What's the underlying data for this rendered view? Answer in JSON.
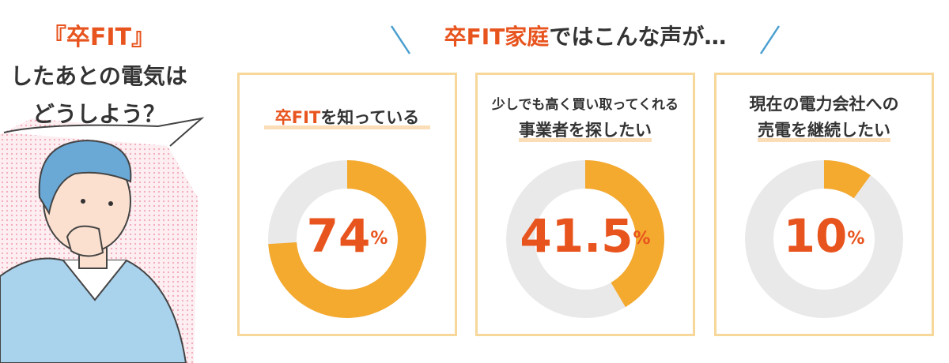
{
  "intro": {
    "lines": [
      [
        {
          "text": "『卒FIT』",
          "color": "#e8541e"
        }
      ],
      [
        {
          "text": "したあとの電気は",
          "color": "#333333"
        }
      ],
      [
        {
          "text": "どうしよう？",
          "color": "#333333"
        }
      ]
    ]
  },
  "header": [
    {
      "text": "卒FIT家庭",
      "color": "#e8541e"
    },
    {
      "text": "ではこんな声が…",
      "color": "#333333"
    }
  ],
  "chart_data": [
    {
      "type": "donut",
      "title": [
        [
          {
            "text": "卒FIT",
            "color": "#e8541e"
          },
          {
            "text": "を知っている",
            "color": "#333333"
          }
        ]
      ],
      "values": [
        74
      ],
      "value_labels": [
        "74%"
      ],
      "color": "#f4a92f",
      "track_color": "#e9e9e9"
    },
    {
      "type": "donut",
      "title": [
        [
          {
            "text": "少しでも高く買い取ってくれる",
            "color": "#333333"
          }
        ],
        [
          {
            "text": "事業者を探したい",
            "color": "#333333"
          }
        ]
      ],
      "values": [
        41.5
      ],
      "value_labels": [
        "41.5%"
      ],
      "color": "#f4a92f",
      "track_color": "#e9e9e9"
    },
    {
      "type": "donut",
      "title": [
        [
          {
            "text": "現在の電力会社への",
            "color": "#333333"
          }
        ],
        [
          {
            "text": "売電を継続したい",
            "color": "#333333"
          }
        ]
      ],
      "values": [
        10
      ],
      "value_labels": [
        "10%"
      ],
      "color": "#f4a92f",
      "track_color": "#e9e9e9"
    }
  ]
}
